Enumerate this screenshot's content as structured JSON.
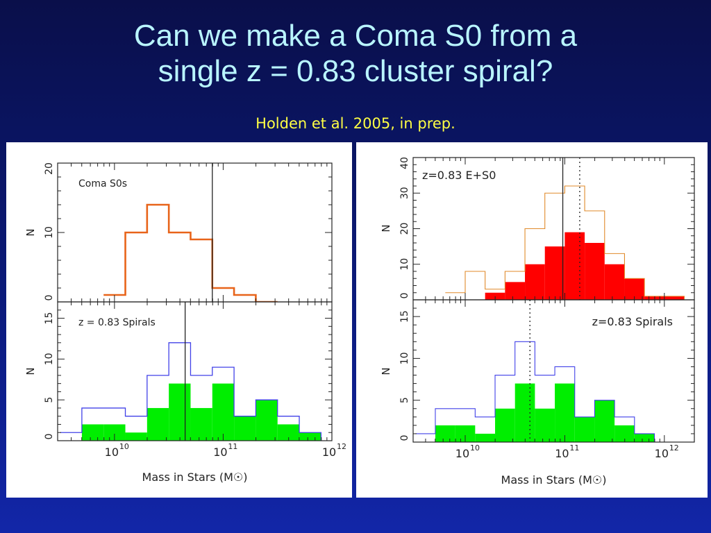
{
  "slide": {
    "title_line1": "Can we make a Coma S0 from a",
    "title_line2": "single z = 0.83 cluster spiral?",
    "subtitle": "Holden et al. 2005, in prep."
  },
  "colors": {
    "orange": "#e8641a",
    "outline_orange": "#e08a2a",
    "blue": "#4040e8",
    "green": "#00ee00",
    "red": "#ff0000"
  },
  "chart_data": [
    {
      "type": "bar",
      "figure": "left",
      "title": "Coma S0s",
      "xlabel": "Mass in Stars (M☉)",
      "ylabel": "N",
      "xscale": "log",
      "xlim": [
        3000000000.0,
        1000000000000.0
      ],
      "ylim": [
        0,
        20
      ],
      "yticks": [
        0,
        10,
        20
      ],
      "xtick_labels": [
        "10",
        "10",
        "10"
      ],
      "xtick_exponents": [
        "10",
        "11",
        "12"
      ],
      "bin_edges_log": [
        9.9,
        10.1,
        10.3,
        10.5,
        10.7,
        10.9,
        11.1,
        11.3,
        11.5
      ],
      "series": [
        {
          "name": "Coma S0s",
          "style": "step-outline",
          "color": "#e8641a",
          "values": [
            1,
            10,
            14,
            10,
            9,
            2,
            1,
            0
          ]
        }
      ],
      "vlines_log": [
        {
          "x": 10.9,
          "style": "solid"
        }
      ]
    },
    {
      "type": "bar",
      "figure": "left",
      "title": "z = 0.83 Spirals",
      "xlabel": "Mass in Stars (M☉)",
      "ylabel": "N",
      "xscale": "log",
      "xlim": [
        3000000000.0,
        1000000000000.0
      ],
      "ylim": [
        0,
        17
      ],
      "yticks": [
        0,
        5,
        10,
        15
      ],
      "xtick_labels": [
        "10",
        "10",
        "10"
      ],
      "xtick_exponents": [
        "10",
        "11",
        "12"
      ],
      "bin_edges_log": [
        9.5,
        9.7,
        9.9,
        10.1,
        10.3,
        10.5,
        10.7,
        10.9,
        11.1,
        11.3,
        11.5,
        11.7,
        11.9
      ],
      "series": [
        {
          "style": "step-outline",
          "color": "#4040e8",
          "values": [
            1,
            4,
            4,
            3,
            8,
            12,
            8,
            9,
            3,
            5,
            3,
            1
          ]
        },
        {
          "style": "filled",
          "color": "#00ee00",
          "values": [
            0,
            2,
            2,
            1,
            4,
            7,
            4,
            7,
            3,
            5,
            2,
            1
          ]
        }
      ],
      "vlines_log": [
        {
          "x": 10.65,
          "style": "solid"
        }
      ]
    },
    {
      "type": "bar",
      "figure": "right",
      "title": "z=0.83 E+S0",
      "xlabel": "Mass in Stars (M☉)",
      "ylabel": "N",
      "xscale": "log",
      "xlim": [
        3000000000.0,
        2000000000000.0
      ],
      "ylim": [
        0,
        40
      ],
      "yticks": [
        0,
        10,
        20,
        30,
        40
      ],
      "xtick_labels": [
        "10",
        "10",
        "10"
      ],
      "xtick_exponents": [
        "10",
        "11",
        "12"
      ],
      "bin_edges_log": [
        9.8,
        10.0,
        10.2,
        10.4,
        10.6,
        10.8,
        11.0,
        11.2,
        11.4,
        11.6,
        11.8,
        12.0,
        12.2
      ],
      "series": [
        {
          "style": "step-outline",
          "color": "#e08a2a",
          "values": [
            2,
            8,
            3,
            8,
            20,
            30,
            32,
            25,
            13,
            6,
            1,
            1
          ]
        },
        {
          "style": "filled",
          "color": "#ff0000",
          "values": [
            0,
            0,
            2,
            5,
            10,
            15,
            19,
            16,
            10,
            6,
            1,
            1
          ]
        }
      ],
      "vlines_log": [
        {
          "x": 10.98,
          "style": "solid"
        },
        {
          "x": 11.15,
          "style": "dotted"
        }
      ]
    },
    {
      "type": "bar",
      "figure": "right",
      "title": "z=0.83 Spirals",
      "xlabel": "Mass in Stars (M☉)",
      "ylabel": "N",
      "xscale": "log",
      "xlim": [
        3000000000.0,
        2000000000000.0
      ],
      "ylim": [
        0,
        17
      ],
      "yticks": [
        0,
        5,
        10,
        15
      ],
      "xtick_labels": [
        "10",
        "10",
        "10"
      ],
      "xtick_exponents": [
        "10",
        "11",
        "12"
      ],
      "bin_edges_log": [
        9.5,
        9.7,
        9.9,
        10.1,
        10.3,
        10.5,
        10.7,
        10.9,
        11.1,
        11.3,
        11.5,
        11.7,
        11.9
      ],
      "series": [
        {
          "style": "step-outline",
          "color": "#4040e8",
          "values": [
            1,
            4,
            4,
            3,
            8,
            12,
            8,
            9,
            3,
            5,
            3,
            1
          ]
        },
        {
          "style": "filled",
          "color": "#00ee00",
          "values": [
            0,
            2,
            2,
            1,
            4,
            7,
            4,
            7,
            3,
            5,
            2,
            1
          ]
        }
      ],
      "vlines_log": [
        {
          "x": 10.65,
          "style": "dotted"
        }
      ]
    }
  ]
}
